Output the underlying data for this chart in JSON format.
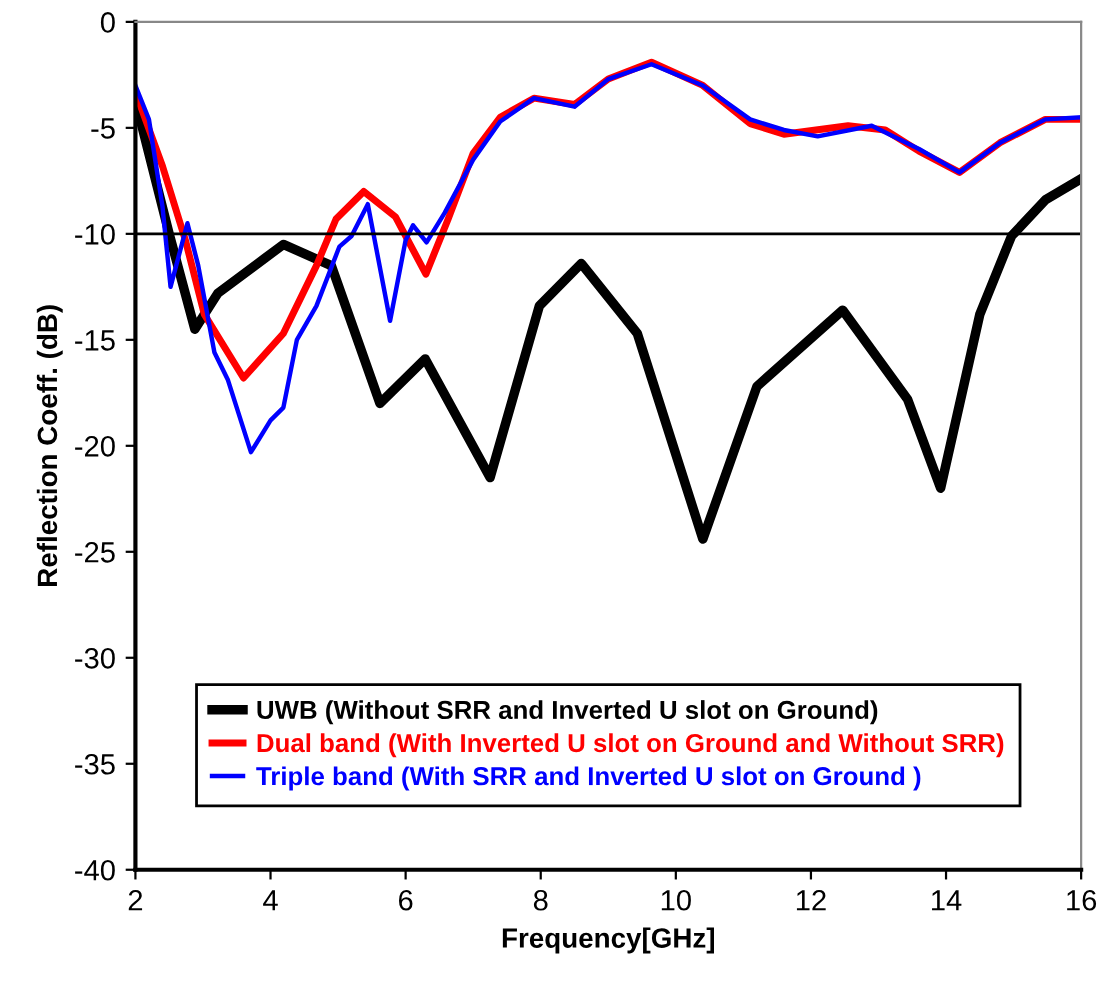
{
  "chart_data": {
    "type": "line",
    "xlabel": "Frequency[GHz]",
    "ylabel": "Reflection Coeff. (dB)",
    "xlim": [
      2,
      16
    ],
    "xticks": [
      2,
      4,
      6,
      8,
      10,
      12,
      14,
      16
    ],
    "ylim": [
      -40,
      0
    ],
    "yticks": [
      -40,
      -35,
      -30,
      -25,
      -20,
      -15,
      -10,
      -5,
      0
    ],
    "grid": false,
    "legend": "bottom",
    "marker": "none",
    "line_style": "solid",
    "ref_lines": [
      {
        "axis": "y",
        "value": -10,
        "color": "#000000"
      }
    ],
    "series": [
      {
        "name": "UWB (Without SRR and Inverted U slot on Ground)",
        "color": "#000000",
        "x": [
          2.0,
          2.5,
          2.88,
          3.22,
          4.19,
          4.9,
          5.62,
          6.29,
          7.25,
          7.98,
          8.6,
          9.43,
          10.4,
          11.2,
          12.47,
          13.43,
          13.92,
          14.5,
          14.97,
          15.47,
          16.0
        ],
        "values": [
          -3.7,
          -10.0,
          -14.5,
          -12.8,
          -10.5,
          -11.5,
          -18.0,
          -15.9,
          -21.5,
          -13.4,
          -11.4,
          -14.7,
          -24.4,
          -17.2,
          -13.6,
          -17.8,
          -22.0,
          -13.8,
          -10.1,
          -8.4,
          -7.4
        ]
      },
      {
        "name": "Dual band (With Inverted U slot on Ground and Without SRR)",
        "color": "#ff0000",
        "x": [
          2.0,
          2.4,
          2.74,
          3.02,
          3.6,
          4.19,
          4.68,
          4.97,
          5.38,
          5.85,
          6.3,
          6.63,
          7.0,
          7.4,
          7.9,
          8.5,
          9.0,
          9.64,
          10.4,
          11.1,
          11.6,
          12.55,
          13.1,
          13.6,
          14.2,
          14.8,
          15.47,
          16.0
        ],
        "values": [
          -3.3,
          -6.8,
          -10.3,
          -13.8,
          -16.8,
          -14.7,
          -11.5,
          -9.3,
          -8.0,
          -9.2,
          -11.9,
          -9.3,
          -6.2,
          -4.5,
          -3.6,
          -3.9,
          -2.7,
          -1.9,
          -3.0,
          -4.8,
          -5.3,
          -4.9,
          -5.1,
          -6.1,
          -7.1,
          -5.7,
          -4.6,
          -4.6
        ]
      },
      {
        "name": "Triple band (With SRR and Inverted U slot on Ground )",
        "color": "#0000ff",
        "x": [
          2.0,
          2.2,
          2.4,
          2.52,
          2.77,
          2.93,
          3.17,
          3.37,
          3.71,
          4.0,
          4.19,
          4.39,
          4.68,
          5.02,
          5.2,
          5.44,
          5.77,
          6.0,
          6.11,
          6.31,
          6.58,
          7.0,
          7.4,
          7.9,
          8.5,
          9.0,
          9.64,
          10.4,
          11.1,
          11.6,
          12.1,
          12.9,
          13.6,
          14.2,
          14.8,
          15.47,
          16.0
        ],
        "values": [
          -3.0,
          -4.6,
          -8.7,
          -12.5,
          -9.5,
          -11.5,
          -15.6,
          -16.9,
          -20.3,
          -18.8,
          -18.2,
          -15.0,
          -13.4,
          -10.6,
          -10.1,
          -8.6,
          -14.1,
          -10.3,
          -9.6,
          -10.4,
          -9.0,
          -6.5,
          -4.7,
          -3.6,
          -4.0,
          -2.7,
          -2.0,
          -3.0,
          -4.6,
          -5.1,
          -5.4,
          -4.9,
          -6.0,
          -7.1,
          -5.7,
          -4.6,
          -4.5
        ]
      }
    ]
  }
}
